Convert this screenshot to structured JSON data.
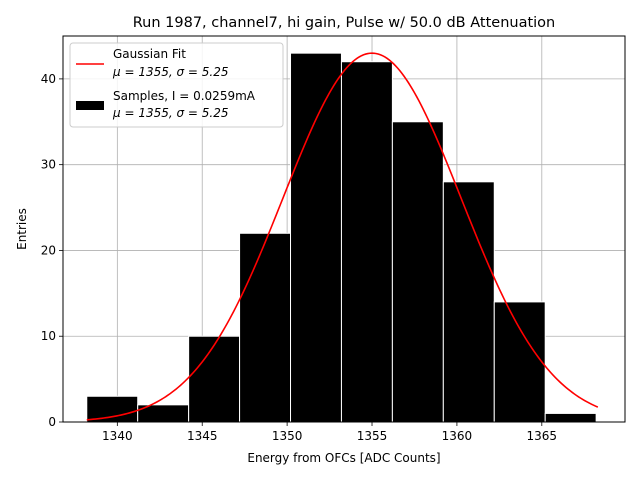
{
  "chart_data": {
    "type": "histogram",
    "title": "Run 1987, channel7, hi gain, Pulse w/ 50.0 dB Attenuation",
    "xlabel": "Energy from OFCs [ADC Counts]",
    "ylabel": "Entries",
    "xlim": [
      1336.8,
      1369.9
    ],
    "ylim": [
      0,
      45
    ],
    "xticks": [
      1340,
      1345,
      1350,
      1355,
      1360,
      1365
    ],
    "yticks": [
      0,
      10,
      20,
      30,
      40
    ],
    "grid": true,
    "legend_position": "top-left",
    "bins": [
      {
        "start": 1338.2,
        "end": 1341.2,
        "count": 3
      },
      {
        "start": 1341.2,
        "end": 1344.2,
        "count": 2
      },
      {
        "start": 1344.2,
        "end": 1347.2,
        "count": 10
      },
      {
        "start": 1347.2,
        "end": 1350.2,
        "count": 22
      },
      {
        "start": 1350.2,
        "end": 1353.2,
        "count": 43
      },
      {
        "start": 1353.2,
        "end": 1356.2,
        "count": 42
      },
      {
        "start": 1356.2,
        "end": 1359.2,
        "count": 35
      },
      {
        "start": 1359.2,
        "end": 1362.2,
        "count": 28
      },
      {
        "start": 1362.2,
        "end": 1365.2,
        "count": 14
      },
      {
        "start": 1365.2,
        "end": 1368.2,
        "count": 1
      }
    ],
    "fit": {
      "type": "gaussian",
      "mu": 1355,
      "sigma": 5.25,
      "amplitude": 43,
      "x_range": [
        1338.2,
        1368.3
      ],
      "color": "#ff0000"
    },
    "bar_color": "#000000",
    "legend": [
      {
        "label_line1": "Gaussian Fit",
        "label_line2": "μ = 1355, σ = 5.25",
        "kind": "line",
        "color": "#ff0000"
      },
      {
        "label_line1": "Samples, I = 0.0259mA",
        "label_line2": "μ = 1355, σ = 5.25",
        "kind": "patch",
        "color": "#000000"
      }
    ]
  }
}
